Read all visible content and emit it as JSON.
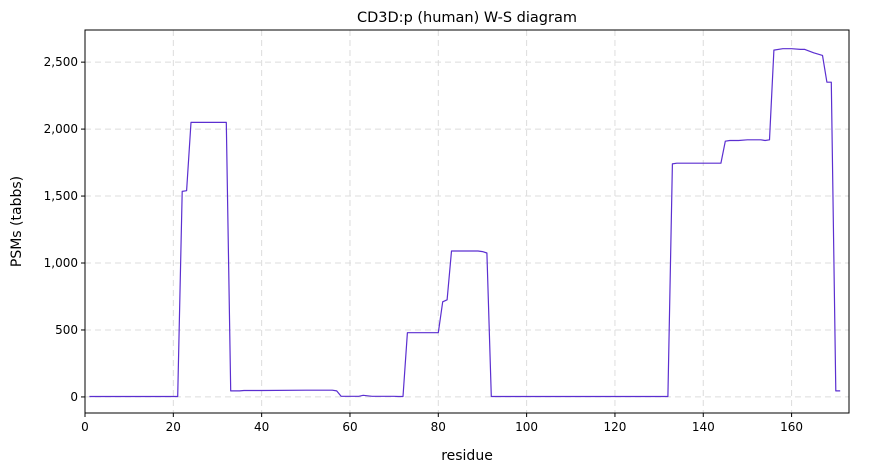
{
  "chart_data": {
    "type": "line",
    "title": "CD3D:p (human) W-S diagram",
    "xlabel": "residue",
    "ylabel": "PSMs (tabbs)",
    "xlim": [
      0,
      173
    ],
    "ylim": [
      -120,
      2740
    ],
    "x_ticks": [
      0,
      20,
      40,
      60,
      80,
      100,
      120,
      140,
      160
    ],
    "x_tick_labels": [
      "0",
      "20",
      "40",
      "60",
      "80",
      "100",
      "120",
      "140",
      "160"
    ],
    "y_ticks": [
      0,
      500,
      1000,
      1500,
      2000,
      2500
    ],
    "y_tick_labels": [
      "0",
      "500",
      "1,000",
      "1,500",
      "2,000",
      "2,500"
    ],
    "grid": true,
    "line_color": "#5b2fd0",
    "series": [
      {
        "x": [
          1,
          10,
          21,
          22,
          23,
          24,
          25,
          32,
          33,
          35,
          36,
          40,
          50,
          56,
          57,
          58,
          60,
          62,
          63,
          65,
          70,
          71,
          72,
          73,
          74,
          75,
          80,
          81,
          82,
          83,
          85,
          89,
          90,
          91,
          92,
          95,
          100,
          110,
          120,
          130,
          132,
          133,
          134,
          135,
          140,
          144,
          145,
          146,
          148,
          150,
          153,
          154,
          155,
          156,
          158,
          160,
          162,
          163,
          165,
          167,
          168,
          169,
          170,
          171
        ],
        "y": [
          3,
          3,
          3,
          1535,
          1540,
          2050,
          2050,
          2050,
          45,
          45,
          48,
          48,
          50,
          50,
          45,
          5,
          5,
          5,
          12,
          5,
          5,
          3,
          3,
          480,
          480,
          480,
          480,
          710,
          725,
          1090,
          1090,
          1090,
          1085,
          1075,
          3,
          3,
          3,
          3,
          3,
          3,
          3,
          1740,
          1745,
          1745,
          1745,
          1745,
          1910,
          1915,
          1915,
          1920,
          1920,
          1915,
          1920,
          2590,
          2600,
          2600,
          2595,
          2595,
          2570,
          2550,
          2350,
          2350,
          45,
          45
        ]
      }
    ]
  }
}
